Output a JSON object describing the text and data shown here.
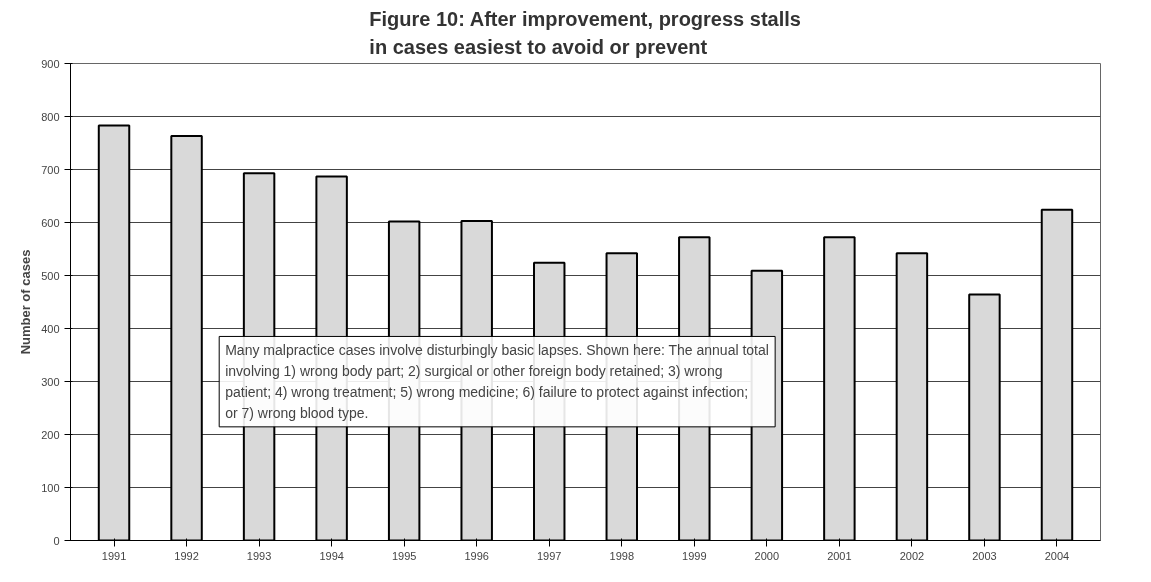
{
  "chart_data": {
    "type": "bar",
    "title": "Figure 10: After improvement, progress stalls\nin cases easiest to avoid or prevent",
    "ylabel": "Number of cases",
    "categories": [
      "1991",
      "1992",
      "1993",
      "1994",
      "1995",
      "1996",
      "1997",
      "1998",
      "1999",
      "2000",
      "2001",
      "2002",
      "2003",
      "2004"
    ],
    "values": [
      783,
      763,
      693,
      687,
      602,
      603,
      524,
      542,
      572,
      509,
      572,
      542,
      464,
      624
    ],
    "color": "#d9d9d9",
    "ylim": [
      0,
      900
    ],
    "yticks": [
      0,
      100,
      200,
      300,
      400,
      500,
      600,
      700,
      800,
      900
    ],
    "grid": "y",
    "annotations": [
      "Many malpractice cases involve disturbingly basic lapses. Shown here: The annual total involving 1) wrong body part; 2) surgical or other foreign body retained; 3) wrong patient; 4) wrong treatment; 5) wrong medicine; 6) failure to protect against infection; or 7) wrong blood type."
    ]
  }
}
